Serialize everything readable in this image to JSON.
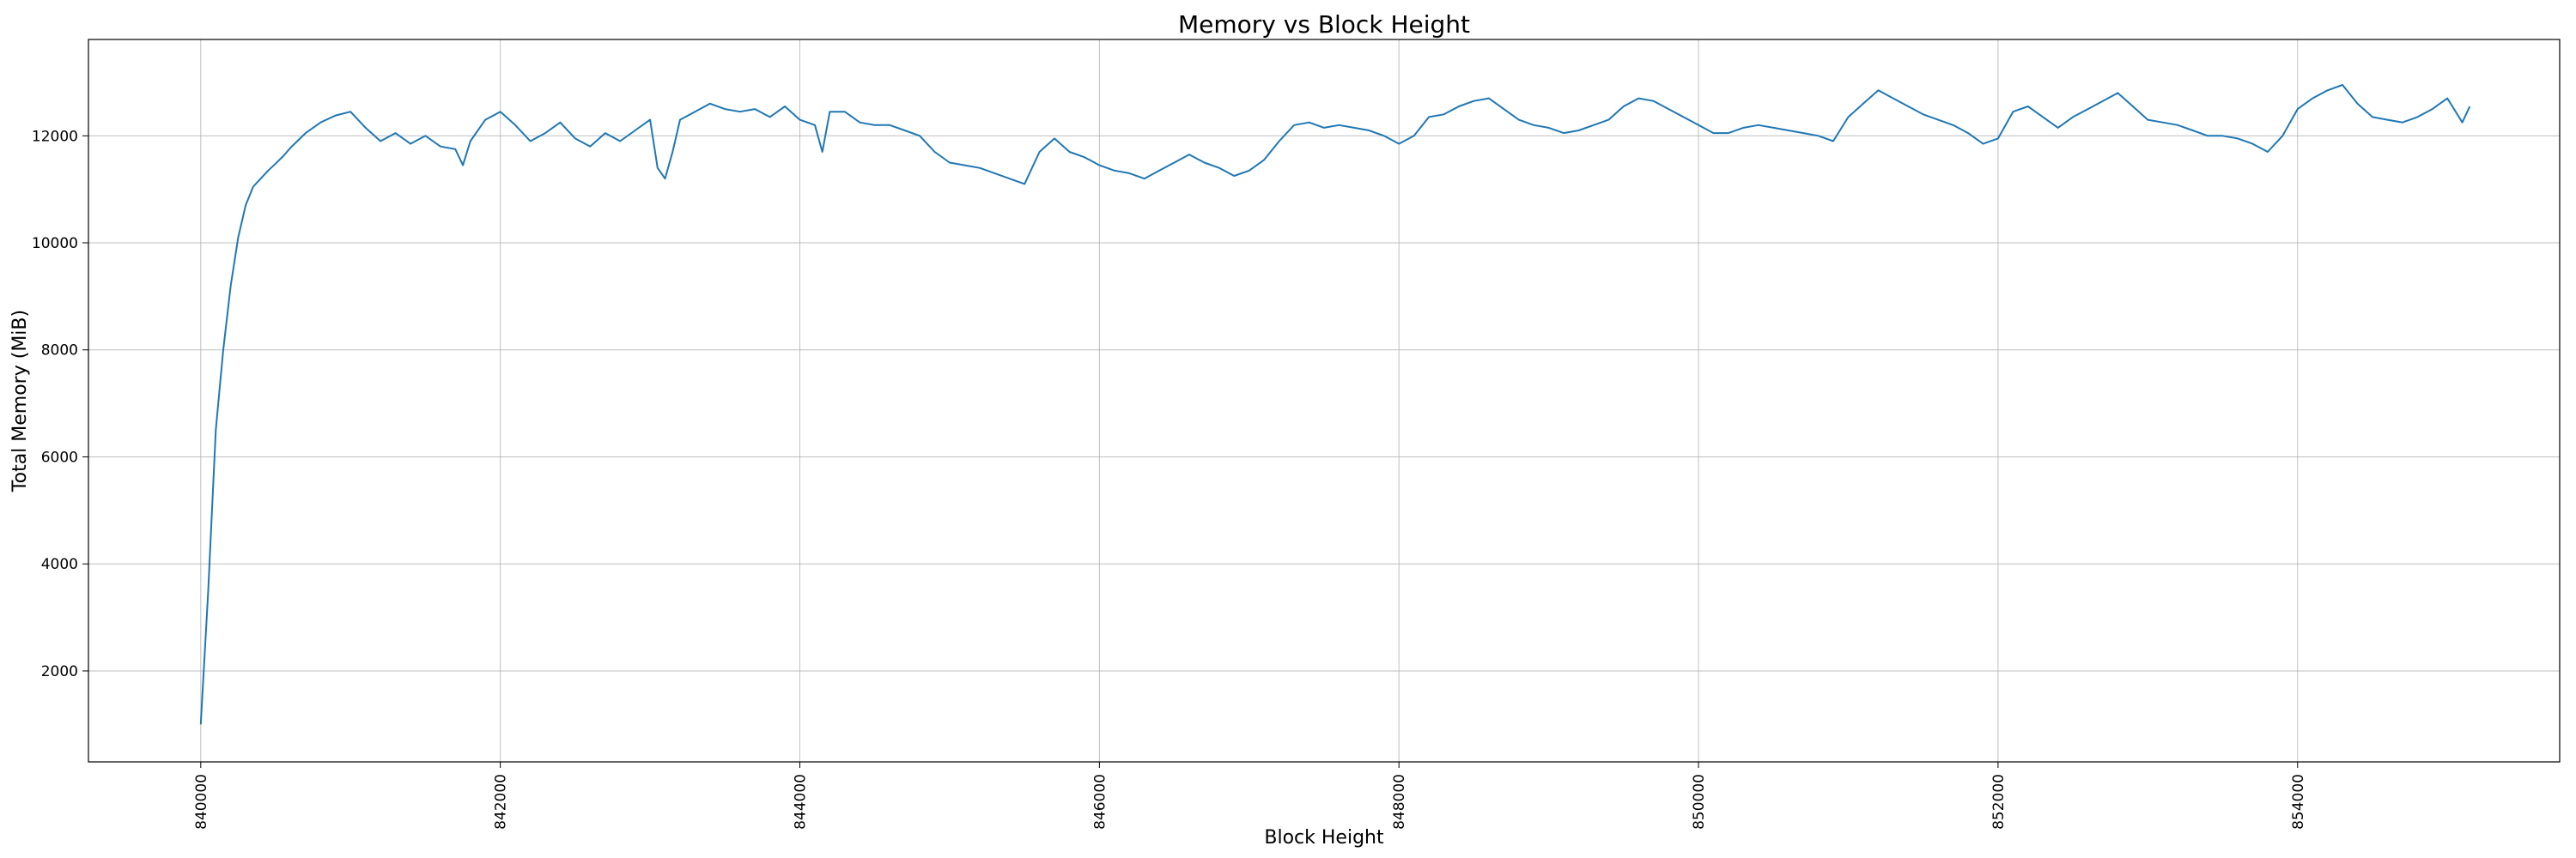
{
  "colors": {
    "line": "#1f77b4",
    "grid": "#b0b0b0",
    "axis": "#000000",
    "background": "#ffffff"
  },
  "chart_data": {
    "type": "line",
    "title": "Memory vs Block Height",
    "xlabel": "Block Height",
    "ylabel": "Total Memory (MiB)",
    "xlim": [
      839250,
      855750
    ],
    "ylim": [
      300,
      13800
    ],
    "xticks": [
      840000,
      842000,
      844000,
      846000,
      848000,
      850000,
      852000,
      854000
    ],
    "yticks": [
      2000,
      4000,
      6000,
      8000,
      10000,
      12000
    ],
    "grid": true,
    "legend": "none",
    "series": [
      {
        "x": [
          840000,
          840050,
          840100,
          840150,
          840200,
          840250,
          840300,
          840350,
          840400,
          840450,
          840500,
          840550,
          840600,
          840700,
          840800,
          840900,
          841000,
          841100,
          841200,
          841300,
          841400,
          841500,
          841600,
          841700,
          841750,
          841800,
          841900,
          842000,
          842100,
          842200,
          842300,
          842400,
          842500,
          842600,
          842700,
          842800,
          842900,
          843000,
          843050,
          843100,
          843150,
          843200,
          843300,
          843400,
          843500,
          843600,
          843700,
          843800,
          843900,
          844000,
          844100,
          844150,
          844200,
          844300,
          844400,
          844500,
          844600,
          844700,
          844800,
          844900,
          845000,
          845100,
          845200,
          845300,
          845400,
          845500,
          845600,
          845700,
          845800,
          845900,
          846000,
          846100,
          846200,
          846300,
          846400,
          846500,
          846600,
          846700,
          846800,
          846900,
          847000,
          847100,
          847200,
          847300,
          847400,
          847500,
          847600,
          847700,
          847800,
          847900,
          848000,
          848100,
          848200,
          848300,
          848400,
          848500,
          848600,
          848700,
          848800,
          848900,
          849000,
          849100,
          849200,
          849300,
          849400,
          849500,
          849600,
          849700,
          849800,
          849900,
          850000,
          850100,
          850200,
          850300,
          850400,
          850500,
          850600,
          850700,
          850800,
          850900,
          851000,
          851100,
          851200,
          851300,
          851400,
          851500,
          851600,
          851700,
          851800,
          851900,
          852000,
          852100,
          852200,
          852300,
          852400,
          852500,
          852600,
          852700,
          852800,
          852900,
          853000,
          853100,
          853200,
          853300,
          853400,
          853500,
          853600,
          853700,
          853800,
          853900,
          854000,
          854100,
          854200,
          854300,
          854400,
          854500,
          854600,
          854700,
          854800,
          854900,
          855000,
          855100,
          855150
        ],
        "y": [
          1000,
          3500,
          6500,
          8000,
          9200,
          10100,
          10700,
          11050,
          11200,
          11350,
          11480,
          11620,
          11780,
          12050,
          12250,
          12380,
          12450,
          12150,
          11900,
          12050,
          11850,
          12000,
          11800,
          11750,
          11450,
          11900,
          12300,
          12450,
          12200,
          11900,
          12050,
          12250,
          11950,
          11800,
          12050,
          11900,
          12100,
          12300,
          11400,
          11200,
          11700,
          12300,
          12450,
          12600,
          12500,
          12450,
          12500,
          12350,
          12550,
          12300,
          12200,
          11700,
          12450,
          12450,
          12250,
          12200,
          12200,
          12100,
          12000,
          11700,
          11500,
          11450,
          11400,
          11300,
          11200,
          11100,
          11700,
          11950,
          11700,
          11600,
          11450,
          11350,
          11300,
          11200,
          11350,
          11500,
          11650,
          11500,
          11400,
          11250,
          11350,
          11550,
          11900,
          12200,
          12250,
          12150,
          12200,
          12150,
          12100,
          12000,
          11850,
          12000,
          12350,
          12400,
          12550,
          12650,
          12700,
          12500,
          12300,
          12200,
          12150,
          12050,
          12100,
          12200,
          12300,
          12550,
          12700,
          12650,
          12500,
          12350,
          12200,
          12050,
          12050,
          12150,
          12200,
          12150,
          12100,
          12050,
          12000,
          11900,
          12350,
          12600,
          12850,
          12700,
          12550,
          12400,
          12300,
          12200,
          12050,
          11850,
          11950,
          12450,
          12550,
          12350,
          12150,
          12350,
          12500,
          12650,
          12800,
          12550,
          12300,
          12250,
          12200,
          12100,
          12000,
          12000,
          11950,
          11850,
          11700,
          12000,
          12500,
          12700,
          12850,
          12950,
          12600,
          12350,
          12300,
          12250,
          12350,
          12500,
          12700,
          12250,
          12550
        ]
      }
    ]
  }
}
